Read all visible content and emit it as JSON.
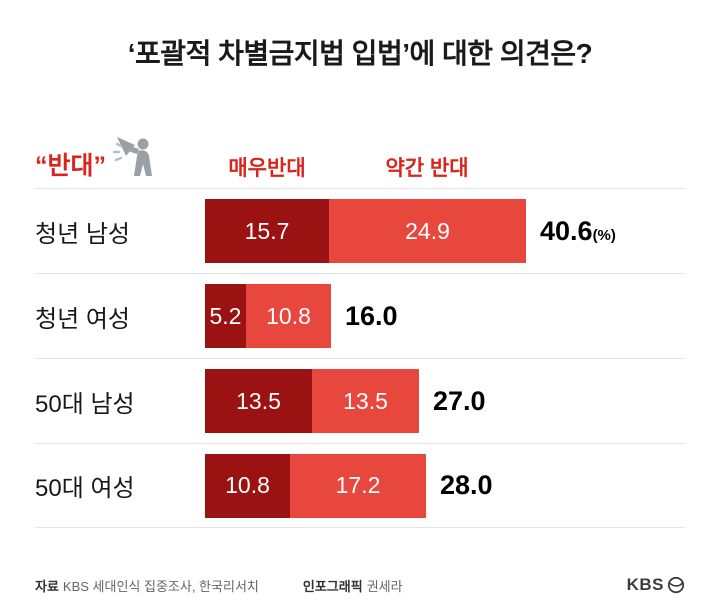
{
  "title": "‘포괄적 차별금지법 입법’에 대한 의견은?",
  "header": {
    "stance_label": "“반대”"
  },
  "colors": {
    "strong": "#9b1212",
    "mild": "#e8473e",
    "accent_text": "#d8251d"
  },
  "chart_data": {
    "type": "bar",
    "orientation": "horizontal",
    "title": "‘포괄적 차별금지법 입법’에 대한 의견은?",
    "unit": "%",
    "legend_position": "top",
    "categories": [
      "청년 남성",
      "청년 여성",
      "50대 남성",
      "50대 여성"
    ],
    "series": [
      {
        "name": "매우반대",
        "color": "#9b1212",
        "values": [
          "15.7",
          "5.2",
          "13.5",
          "10.8"
        ]
      },
      {
        "name": "약간 반대",
        "color": "#e8473e",
        "values": [
          "24.9",
          "10.8",
          "13.5",
          "17.2"
        ]
      }
    ],
    "totals": [
      "40.6",
      "16.0",
      "27.0",
      "28.0"
    ],
    "total_suffix": "(%)",
    "xmax": 45
  },
  "footer": {
    "source_label": "자료",
    "source_text": "KBS 세대인식 집중조사, 한국리서치",
    "credit_label": "인포그래픽",
    "credit_text": "권세라",
    "logo_text": "KBS"
  }
}
